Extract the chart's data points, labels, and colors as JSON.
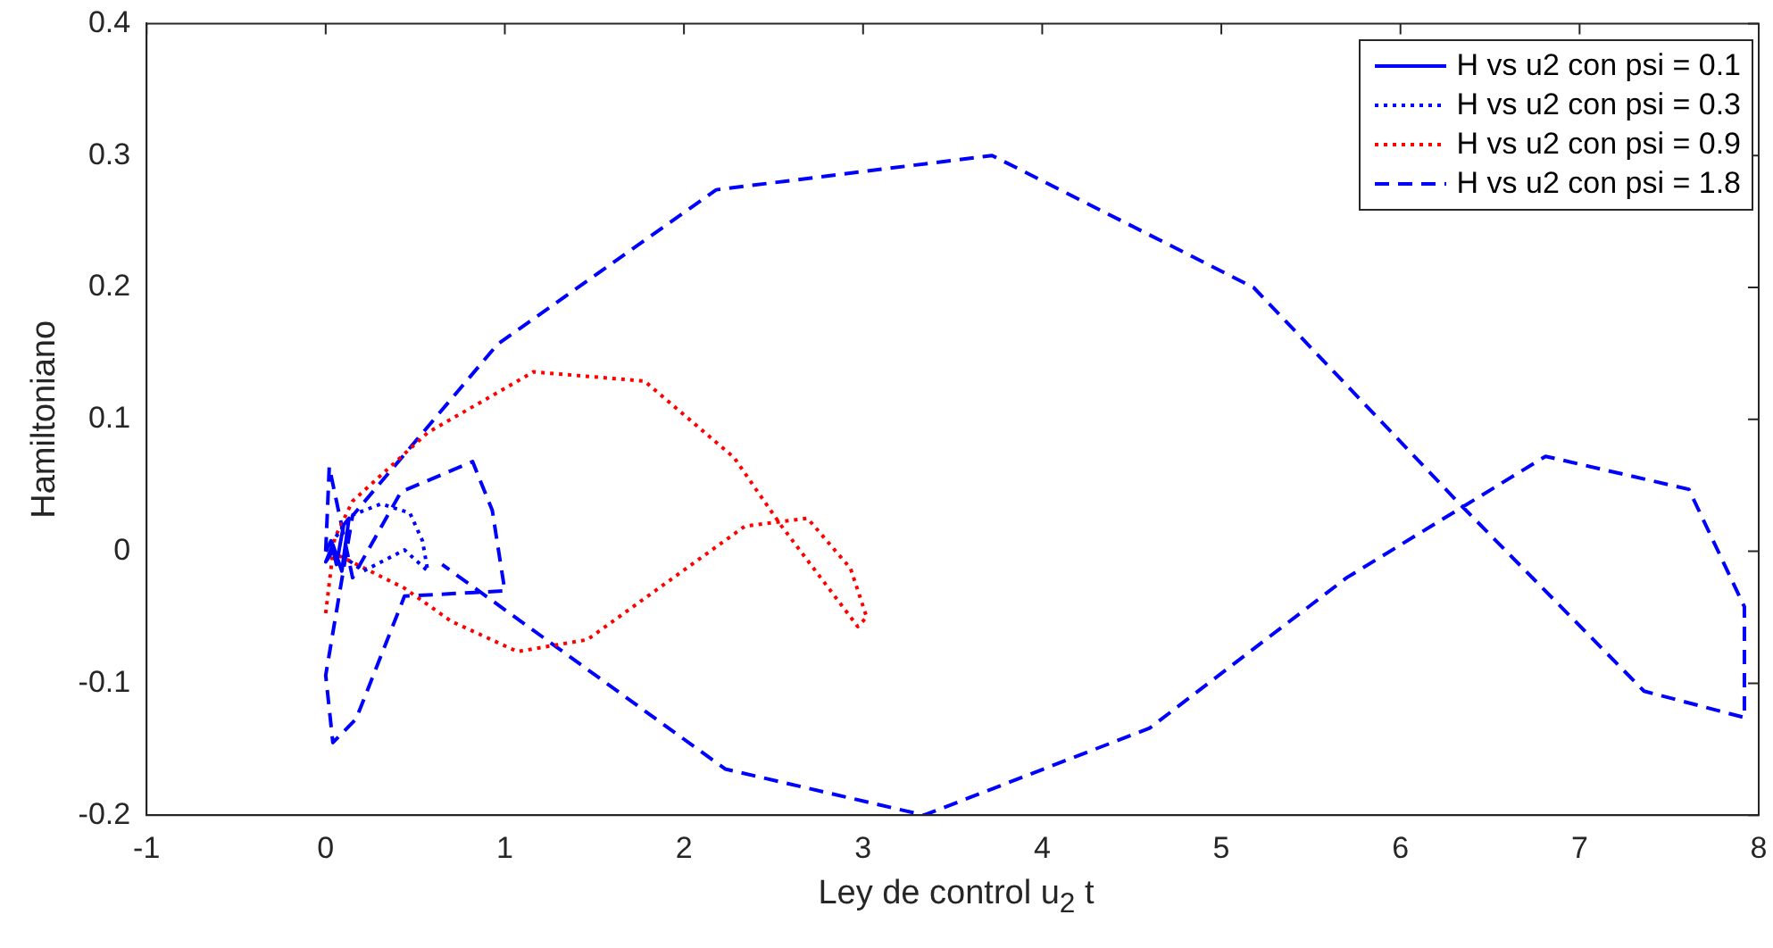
{
  "chart_data": {
    "type": "line",
    "xlabel": "Ley de control u$_{2}$ t",
    "ylabel": "Hamiltoniano",
    "xlim": [
      -1,
      8
    ],
    "xticks": [
      -1,
      0,
      1,
      2,
      3,
      4,
      5,
      6,
      7,
      8
    ],
    "ylim": [
      -0.2,
      0.4
    ],
    "yticks": [
      -0.2,
      -0.1,
      0,
      0.1,
      0.2,
      0.3,
      0.4
    ],
    "legend": "top right",
    "series": [
      {
        "name": "H vs u2 con psi = 0.1",
        "color": "#0000ff",
        "line_style": "solid",
        "x": [
          0,
          0.03,
          0.06,
          0.1,
          0.13,
          0.09,
          0.04,
          0,
          0.02,
          0.05
        ],
        "values": [
          0,
          0.008,
          -0.01,
          0.02,
          0.025,
          -0.015,
          0.005,
          -0.008,
          -0.004,
          0.003
        ]
      },
      {
        "name": "H vs u2 con psi = 0.3",
        "color": "#0000ff",
        "line_style": "dotted",
        "x": [
          0,
          0.14,
          0.31,
          0.47,
          0.54,
          0.57,
          0.44,
          0.21,
          0.09,
          0.02
        ],
        "values": [
          0,
          0.027,
          0.036,
          0.029,
          0.008,
          -0.015,
          0.001,
          -0.015,
          -0.003,
          0
        ]
      },
      {
        "name": "H vs u2 con psi = 0.9",
        "color": "#ff0000",
        "line_style": "dotted",
        "x": [
          0,
          0.05,
          0.15,
          0.57,
          1.16,
          1.78,
          2.28,
          2.54,
          2.97,
          3.02,
          2.93,
          2.69,
          2.34,
          1.46,
          1.07,
          0.7,
          0.44,
          0.1,
          0.02
        ],
        "values": [
          -0.047,
          0.01,
          0.038,
          0.09,
          0.136,
          0.129,
          0.071,
          0.02,
          -0.057,
          -0.05,
          -0.013,
          0.025,
          0.019,
          -0.067,
          -0.076,
          -0.053,
          -0.028,
          -0.005,
          0
        ]
      },
      {
        "name": "H vs u2 con psi = 1.8",
        "color": "#0000ff",
        "line_style": "dashed",
        "x": [
          0,
          0.02,
          0.15,
          0.42,
          0.82,
          0.93,
          1.0,
          0.44,
          0.17,
          0.04,
          0,
          0.15,
          0.96,
          2.18,
          3.72,
          5.18,
          6.33,
          7.36,
          7.92,
          7.92,
          7.61,
          6.81,
          5.7,
          4.6,
          3.34,
          2.23,
          1.14,
          0.65
        ],
        "values": [
          0,
          0.064,
          -0.02,
          0.045,
          0.068,
          0.031,
          -0.03,
          -0.034,
          -0.127,
          -0.145,
          -0.094,
          0.027,
          0.157,
          0.274,
          0.3,
          0.2,
          0.036,
          -0.106,
          -0.126,
          -0.042,
          0.047,
          0.072,
          -0.02,
          -0.134,
          -0.2,
          -0.165,
          -0.058,
          -0.01
        ]
      }
    ]
  }
}
